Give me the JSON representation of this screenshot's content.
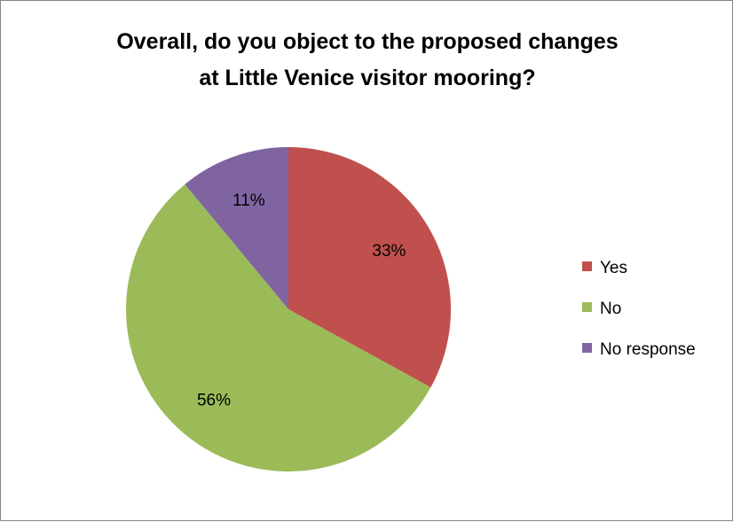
{
  "chart_data": {
    "type": "pie",
    "title_lines": [
      "Overall, do you object to the proposed changes",
      "at Little Venice visitor mooring?"
    ],
    "start_angle_deg": 0,
    "direction": "clockwise",
    "slices": [
      {
        "label": "Yes",
        "value": 33,
        "display": "33%",
        "color": "#c0504d"
      },
      {
        "label": "No",
        "value": 56,
        "display": "56%",
        "color": "#9bbb59"
      },
      {
        "label": "No response",
        "value": 11,
        "display": "11%",
        "color": "#8064a2"
      }
    ],
    "legend_position": "right"
  }
}
